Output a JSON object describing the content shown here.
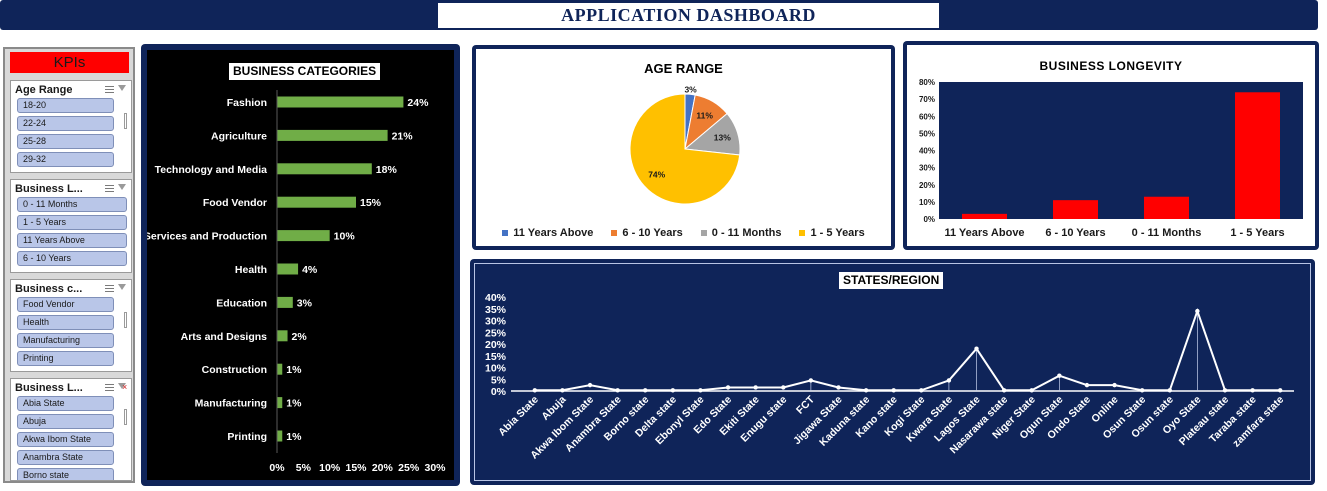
{
  "header": {
    "title": "APPLICATION DASHBOARD"
  },
  "colors": {
    "navy": "#0f2459",
    "bar_green": "#70ad47",
    "bar_red": "#ff0000",
    "kpi_red": "#ff0000",
    "slicer_item": "#b9c6e8"
  },
  "kpi_panel": {
    "title": "KPIs",
    "slicers": [
      {
        "title": "Age Range",
        "items": [
          "18-20",
          "22-24",
          "25-28",
          "29-32"
        ]
      },
      {
        "title": "Business L...",
        "items": [
          "0 - 11 Months",
          "1 - 5 Years",
          "11 Years Above",
          "6 - 10 Years"
        ]
      },
      {
        "title": "Business c...",
        "items": [
          "Food Vendor",
          "Health",
          "Manufacturing",
          "Printing"
        ]
      },
      {
        "title": "Business L...",
        "items": [
          "Abia State",
          "Abuja",
          "Akwa Ibom State",
          "Anambra State",
          "Borno state"
        ]
      }
    ]
  },
  "chart_data": [
    {
      "type": "bar",
      "orientation": "horizontal",
      "title": "BUSINESS CATEGORIES",
      "categories": [
        "Fashion",
        "Agriculture",
        "Technology and Media",
        "Food Vendor",
        "Services and Production",
        "Health",
        "Education",
        "Arts and Designs",
        "Construction",
        "Manufacturing",
        "Printing"
      ],
      "values": [
        24,
        21,
        18,
        15,
        10,
        4,
        3,
        2,
        1,
        1,
        1
      ],
      "data_labels": [
        "24%",
        "21%",
        "18%",
        "15%",
        "10%",
        "4%",
        "3%",
        "2%",
        "1%",
        "1%",
        "1%"
      ],
      "xlim": [
        0,
        30
      ],
      "x_ticks": [
        "0%",
        "5%",
        "10%",
        "15%",
        "20%",
        "25%",
        "30%"
      ],
      "color": "#70ad47",
      "grid": false
    },
    {
      "type": "pie",
      "title": "AGE RANGE",
      "labels": [
        "11 Years Above",
        "6 - 10 Years",
        "0 - 11 Months",
        "1 - 5 Years"
      ],
      "values": [
        3,
        11,
        13,
        74
      ],
      "data_labels": [
        "3%",
        "11%",
        "13%",
        "74%"
      ],
      "colors": [
        "#4472c4",
        "#ed7d31",
        "#a5a5a5",
        "#ffc000"
      ],
      "legend": "bottom"
    },
    {
      "type": "bar",
      "title": "BUSINESS LONGEVITY",
      "categories": [
        "11 Years Above",
        "6 - 10 Years",
        "0 - 11 Months",
        "1 - 5 Years"
      ],
      "values": [
        3,
        11,
        13,
        74
      ],
      "ylim": [
        0,
        80
      ],
      "y_ticks": [
        "0%",
        "10%",
        "20%",
        "30%",
        "40%",
        "50%",
        "60%",
        "70%",
        "80%"
      ],
      "color": "#ff0000",
      "grid": false
    },
    {
      "type": "line",
      "title": "STATES/REGION",
      "categories": [
        "Abia State",
        "Abuja",
        "Akwa Ibom State",
        "Anambra State",
        "Borno state",
        "Delta state",
        "Ebonyl State",
        "Edo State",
        "Ekiti State",
        "Enugu state",
        "FCT",
        "Jigawa State",
        "Kaduna state",
        "Kano state",
        "Kogi State",
        "Kwara State",
        "Lagos State",
        "Nasarawa state",
        "Niger State",
        "Ogun State",
        "Ondo State",
        "Online",
        "Osun State",
        "Osun state",
        "Oyo State",
        "Plateau state",
        "Taraba state",
        "zamfara state"
      ],
      "values": [
        0.3,
        0.3,
        2.5,
        0.3,
        0.3,
        0.3,
        0.3,
        1.5,
        1.5,
        1.5,
        4.5,
        1.5,
        0.3,
        0.3,
        0.3,
        4.5,
        18,
        0.3,
        0.3,
        6.5,
        2.5,
        2.5,
        0.3,
        0.3,
        34,
        0.3,
        0.3,
        0.3
      ],
      "ylim": [
        0,
        40
      ],
      "y_ticks": [
        "0%",
        "5%",
        "10%",
        "15%",
        "20%",
        "25%",
        "30%",
        "35%",
        "40%"
      ],
      "color": "#ffffff",
      "grid": false
    }
  ]
}
